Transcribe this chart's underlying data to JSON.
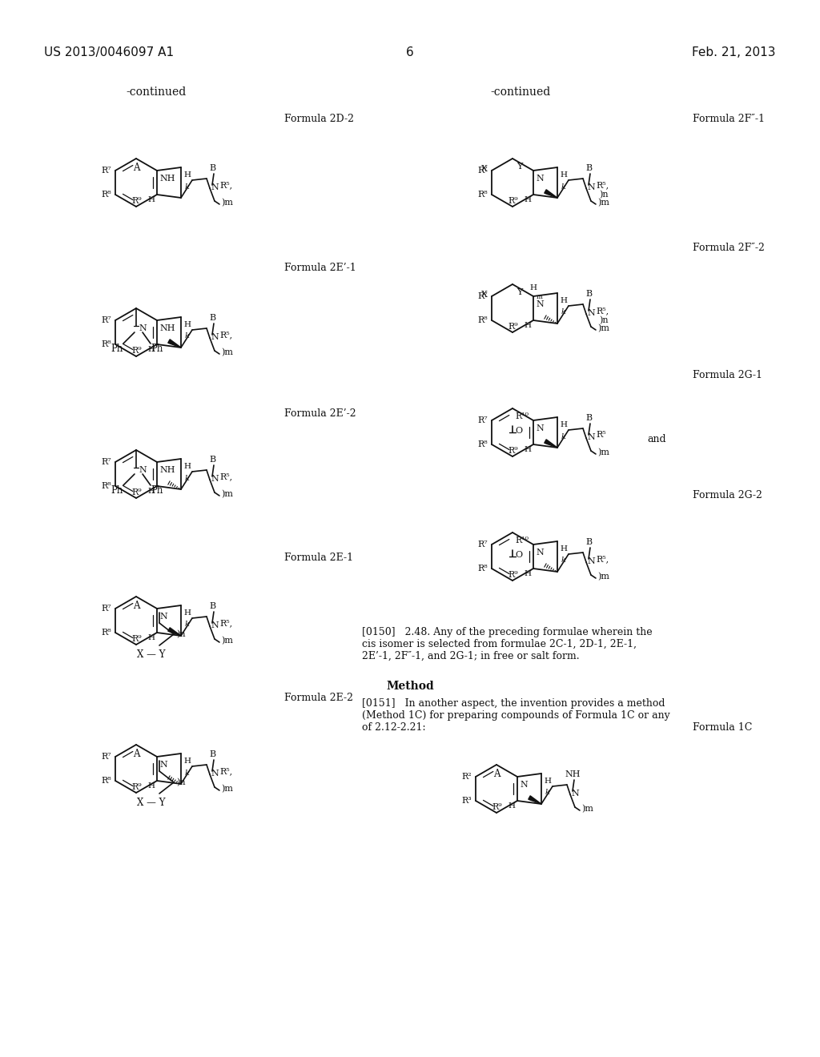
{
  "bg": "#ffffff",
  "header_left": "US 2013/0046097 A1",
  "header_center": "6",
  "header_right": "Feb. 21, 2013",
  "para_0150": "[0150]   2.48. Any of the preceding formulae wherein the\ncis isomer is selected from formulae 2C-1, 2D-1, 2E-1,\n2E’-1, 2F″-1, and 2G-1; in free or salt form.",
  "method_title": "Method",
  "para_0151": "[0151]   In another aspect, the invention provides a method\n(Method 1C) for preparing compounds of Formula 1C or any\nof 2.12-2.21:"
}
